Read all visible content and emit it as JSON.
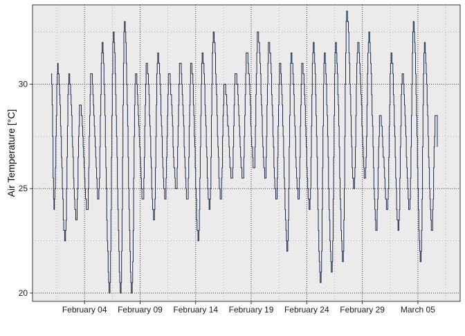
{
  "chart_data": {
    "type": "line",
    "title": "",
    "xlabel": "",
    "ylabel": "Air Temperature [°C]",
    "x_range": [
      "2016-02-01",
      "2016-03-07"
    ],
    "ylim": [
      19.6,
      33.8
    ],
    "x_tick_dates": [
      "2016-02-04",
      "2016-02-09",
      "2016-02-14",
      "2016-02-19",
      "2016-02-24",
      "2016-02-29",
      "2016-03-05"
    ],
    "x_tick_labels": [
      "February 04",
      "February 09",
      "February 14",
      "February 19",
      "February 24",
      "February 29",
      "March 05"
    ],
    "y_ticks": [
      20,
      25,
      30
    ],
    "y_tick_labels": [
      "20",
      "25",
      "30"
    ],
    "grid": "dotted",
    "legend": "none",
    "colors": {
      "line": "#1b2447",
      "panel": "#ebebeb",
      "major_grid": "#333333",
      "minor_grid": "#b8b8b8"
    },
    "daily_extremes": [
      {
        "date": "2016-02-01",
        "min": 24.0,
        "max": 30.8
      },
      {
        "date": "2016-02-02",
        "min": 22.5,
        "max": 30.5
      },
      {
        "date": "2016-02-03",
        "min": 23.5,
        "max": 29.0
      },
      {
        "date": "2016-02-04",
        "min": 24.0,
        "max": 30.5
      },
      {
        "date": "2016-02-05",
        "min": 24.5,
        "max": 32.0
      },
      {
        "date": "2016-02-06",
        "min": 20.0,
        "max": 32.5
      },
      {
        "date": "2016-02-07",
        "min": 20.0,
        "max": 33.0
      },
      {
        "date": "2016-02-08",
        "min": 20.0,
        "max": 30.5
      },
      {
        "date": "2016-02-09",
        "min": 24.5,
        "max": 31.0
      },
      {
        "date": "2016-02-10",
        "min": 23.5,
        "max": 31.5
      },
      {
        "date": "2016-02-11",
        "min": 24.5,
        "max": 30.5
      },
      {
        "date": "2016-02-12",
        "min": 25.0,
        "max": 31.0
      },
      {
        "date": "2016-02-13",
        "min": 24.5,
        "max": 31.0
      },
      {
        "date": "2016-02-14",
        "min": 22.5,
        "max": 31.5
      },
      {
        "date": "2016-02-15",
        "min": 24.0,
        "max": 32.5
      },
      {
        "date": "2016-02-16",
        "min": 24.5,
        "max": 30.0
      },
      {
        "date": "2016-02-17",
        "min": 25.5,
        "max": 30.5
      },
      {
        "date": "2016-02-18",
        "min": 25.5,
        "max": 31.5
      },
      {
        "date": "2016-02-19",
        "min": 26.0,
        "max": 32.5
      },
      {
        "date": "2016-02-20",
        "min": 25.5,
        "max": 32.0
      },
      {
        "date": "2016-02-21",
        "min": 24.5,
        "max": 31.0
      },
      {
        "date": "2016-02-22",
        "min": 22.0,
        "max": 31.5
      },
      {
        "date": "2016-02-23",
        "min": 24.5,
        "max": 31.0
      },
      {
        "date": "2016-02-24",
        "min": 24.0,
        "max": 32.0
      },
      {
        "date": "2016-02-25",
        "min": 20.5,
        "max": 31.5
      },
      {
        "date": "2016-02-26",
        "min": 21.0,
        "max": 32.0
      },
      {
        "date": "2016-02-27",
        "min": 21.5,
        "max": 33.5
      },
      {
        "date": "2016-02-28",
        "min": 25.0,
        "max": 32.0
      },
      {
        "date": "2016-02-29",
        "min": 25.5,
        "max": 32.5
      },
      {
        "date": "2016-03-01",
        "min": 23.0,
        "max": 28.5
      },
      {
        "date": "2016-03-02",
        "min": 24.0,
        "max": 31.5
      },
      {
        "date": "2016-03-03",
        "min": 23.0,
        "max": 30.5
      },
      {
        "date": "2016-03-04",
        "min": 24.0,
        "max": 33.0
      },
      {
        "date": "2016-03-05",
        "min": 21.5,
        "max": 32.0
      },
      {
        "date": "2016-03-06",
        "min": 23.0,
        "max": 28.5
      }
    ]
  }
}
